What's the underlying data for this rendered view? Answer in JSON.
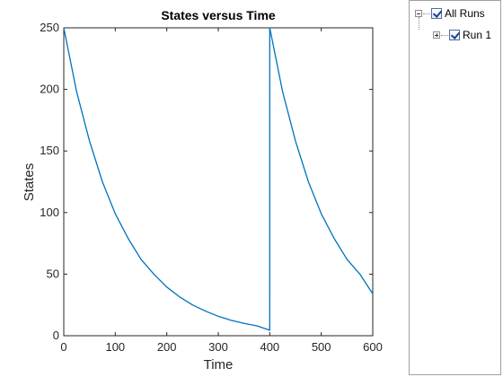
{
  "chart_data": {
    "type": "line",
    "title": "States versus Time",
    "xlabel": "Time",
    "ylabel": "States",
    "xlim": [
      0,
      600
    ],
    "ylim": [
      0,
      250
    ],
    "xticks": [
      0,
      100,
      200,
      300,
      400,
      500,
      600
    ],
    "yticks": [
      0,
      50,
      100,
      150,
      200,
      250
    ],
    "grid": false,
    "color": "#0072bd",
    "series": [
      {
        "x": [
          0,
          25,
          50,
          75,
          100,
          125,
          150,
          175,
          200,
          225,
          250,
          275,
          300,
          325,
          350,
          375,
          399.9,
          400,
          425,
          450,
          475,
          500,
          525,
          550,
          575,
          600
        ],
        "y": [
          250,
          198,
          158,
          125,
          99,
          79,
          62,
          50,
          39.5,
          31.5,
          25,
          20,
          15.8,
          12.5,
          10,
          8,
          4.5,
          250,
          198,
          158,
          125,
          99,
          79,
          62,
          50,
          34
        ]
      }
    ]
  },
  "legend": {
    "root": {
      "label": "All Runs",
      "checked": true,
      "icon": "collapse-minus-icon"
    },
    "children": [
      {
        "label": "Run 1",
        "checked": true,
        "icon": "expand-plus-icon"
      }
    ]
  }
}
